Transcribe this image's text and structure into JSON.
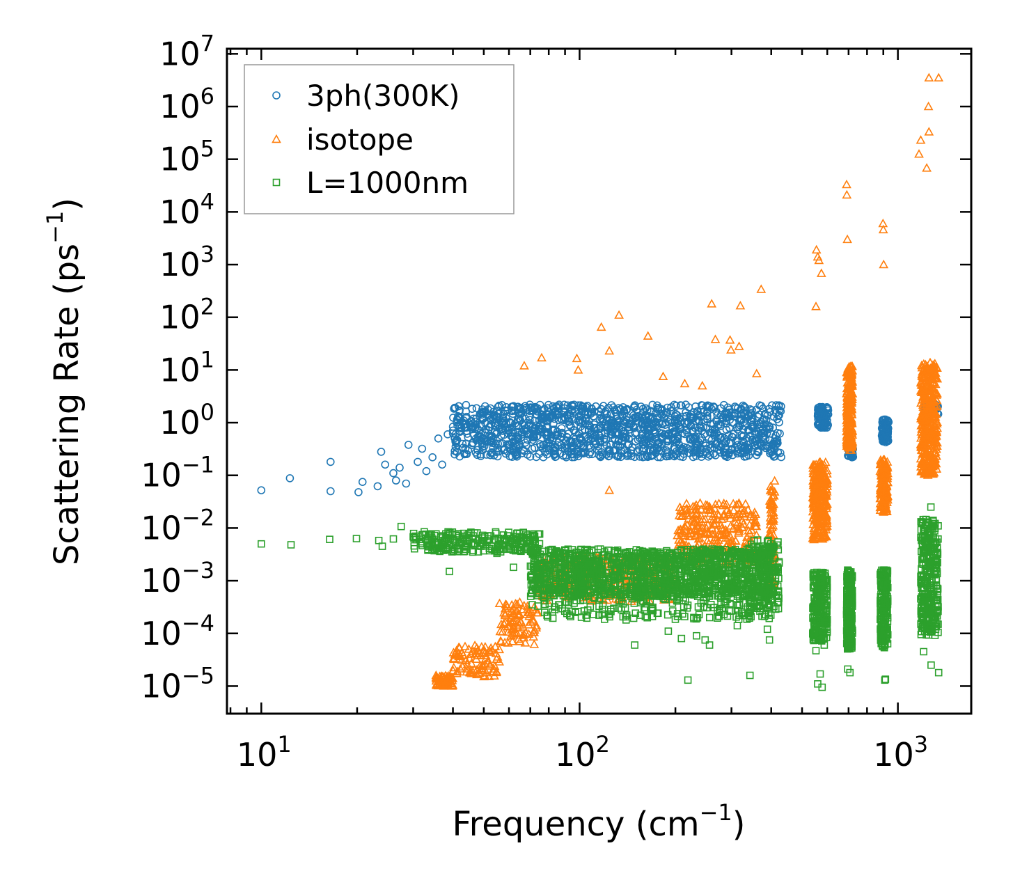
{
  "chart_data": {
    "type": "scatter",
    "xscale": "log",
    "yscale": "log",
    "xlim": [
      7.8,
      1700
    ],
    "ylim": [
      3e-06,
      12500000
    ],
    "xlabel": {
      "base": "Frequency (cm",
      "sup": "−1",
      "tail": ")"
    },
    "ylabel": {
      "base": "Scattering Rate (ps",
      "sup": "−1",
      "tail": ")"
    },
    "xticks": [
      {
        "value": 10,
        "base": "10",
        "exp": "1"
      },
      {
        "value": 100,
        "base": "10",
        "exp": "2"
      },
      {
        "value": 1000,
        "base": "10",
        "exp": "3"
      }
    ],
    "yticks": [
      {
        "value": 1e-05,
        "base": "10",
        "exp": "−5"
      },
      {
        "value": 0.0001,
        "base": "10",
        "exp": "−4"
      },
      {
        "value": 0.001,
        "base": "10",
        "exp": "−3"
      },
      {
        "value": 0.01,
        "base": "10",
        "exp": "−2"
      },
      {
        "value": 0.1,
        "base": "10",
        "exp": "−1"
      },
      {
        "value": 1,
        "base": "10",
        "exp": "0"
      },
      {
        "value": 10,
        "base": "10",
        "exp": "1"
      },
      {
        "value": 100,
        "base": "10",
        "exp": "2"
      },
      {
        "value": 1000,
        "base": "10",
        "exp": "3"
      },
      {
        "value": 10000,
        "base": "10",
        "exp": "4"
      },
      {
        "value": 100000,
        "base": "10",
        "exp": "5"
      },
      {
        "value": 1000000,
        "base": "10",
        "exp": "6"
      },
      {
        "value": 10000000,
        "base": "10",
        "exp": "7"
      }
    ],
    "legend_position": "top-left",
    "series": [
      {
        "name": "3ph(300K)",
        "marker": "circle",
        "color": "#1f77b4",
        "points": [
          [
            10,
            0.052
          ],
          [
            12.3,
            0.088
          ],
          [
            16.5,
            0.18
          ],
          [
            16.5,
            0.05
          ],
          [
            20.2,
            0.048
          ],
          [
            20.8,
            0.075
          ],
          [
            23.2,
            0.062
          ],
          [
            23.8,
            0.28
          ],
          [
            24.5,
            0.16
          ],
          [
            26,
            0.11
          ],
          [
            26.5,
            0.08
          ],
          [
            27.2,
            0.14
          ],
          [
            28.5,
            0.07
          ],
          [
            29,
            0.38
          ],
          [
            31,
            0.18
          ],
          [
            32,
            0.32
          ],
          [
            33,
            0.12
          ],
          [
            34.5,
            0.22
          ],
          [
            36,
            0.5
          ],
          [
            37,
            0.16
          ],
          [
            38.5,
            0.6
          ],
          [
            40.5,
            0.25
          ],
          [
            42,
            0.7
          ],
          [
            44,
            0.4
          ],
          [
            46,
            0.75
          ],
          [
            48,
            0.55
          ],
          [
            54,
            0.65
          ],
          [
            60,
            0.7
          ],
          [
            61,
            0.55
          ],
          [
            68,
            0.78
          ],
          [
            69,
            0.6
          ]
        ],
        "bands": [
          {
            "x0": 40,
            "x1": 430,
            "y0": 0.22,
            "y1": 2.2,
            "count": 1300
          },
          {
            "x0": 560,
            "x1": 605,
            "y0": 0.8,
            "y1": 2.0,
            "count": 90
          },
          {
            "x0": 695,
            "x1": 725,
            "y0": 0.22,
            "y1": 0.38,
            "count": 60
          },
          {
            "x0": 890,
            "x1": 935,
            "y0": 0.42,
            "y1": 1.2,
            "count": 90
          },
          {
            "x0": 1210,
            "x1": 1340,
            "y0": 1.4,
            "y1": 2.3,
            "count": 40
          }
        ]
      },
      {
        "name": "isotope",
        "marker": "triangle",
        "color": "#ff7f0e",
        "points": [
          [
            67,
            12
          ],
          [
            76,
            17
          ],
          [
            98,
            16.5
          ],
          [
            99,
            10
          ],
          [
            117,
            65
          ],
          [
            133,
            110
          ],
          [
            124,
            23
          ],
          [
            164,
            44
          ],
          [
            183,
            7.5
          ],
          [
            214,
            5.5
          ],
          [
            232,
            0.015
          ],
          [
            243,
            5
          ],
          [
            260,
            180
          ],
          [
            267,
            38
          ],
          [
            297,
            37
          ],
          [
            299,
            24
          ],
          [
            320,
            165
          ],
          [
            317,
            28
          ],
          [
            360,
            8.5
          ],
          [
            372,
            340
          ],
          [
            124,
            0.052
          ],
          [
            555,
            1900
          ],
          [
            560,
            1400
          ],
          [
            565,
            1200
          ],
          [
            575,
            680
          ],
          [
            553,
            160
          ],
          [
            690,
            33000
          ],
          [
            691,
            21000
          ],
          [
            694,
            3000
          ],
          [
            898,
            6000
          ],
          [
            900,
            4600
          ],
          [
            902,
            1000
          ],
          [
            1165,
            125000
          ],
          [
            1180,
            230000
          ],
          [
            1232,
            68000
          ],
          [
            1252,
            330000
          ],
          [
            1252,
            3500000
          ],
          [
            1248,
            1000000
          ],
          [
            1343,
            3500000
          ]
        ],
        "bands": [
          {
            "x0": 35,
            "x1": 40,
            "y0": 1e-05,
            "y1": 1.6e-05,
            "count": 60
          },
          {
            "x0": 40,
            "x1": 56,
            "y0": 1.5e-05,
            "y1": 6e-05,
            "count": 90
          },
          {
            "x0": 56,
            "x1": 74,
            "y0": 6e-05,
            "y1": 0.0004,
            "count": 90
          },
          {
            "x0": 74,
            "x1": 200,
            "y0": 0.0004,
            "y1": 0.003,
            "count": 300
          },
          {
            "x0": 200,
            "x1": 360,
            "y0": 0.002,
            "y1": 0.03,
            "count": 260
          },
          {
            "x0": 395,
            "x1": 410,
            "y0": 0.0008,
            "y1": 0.08,
            "count": 80
          },
          {
            "x0": 540,
            "x1": 600,
            "y0": 0.006,
            "y1": 0.18,
            "count": 260
          },
          {
            "x0": 690,
            "x1": 720,
            "y0": 0.3,
            "y1": 12,
            "count": 230
          },
          {
            "x0": 880,
            "x1": 930,
            "y0": 0.02,
            "y1": 0.2,
            "count": 160
          },
          {
            "x0": 1180,
            "x1": 1330,
            "y0": 0.1,
            "y1": 14,
            "count": 380
          }
        ]
      },
      {
        "name": "L=1000nm",
        "marker": "square",
        "color": "#2ca02c",
        "points": [
          [
            10,
            0.005
          ],
          [
            12.4,
            0.0048
          ],
          [
            16.4,
            0.0061
          ],
          [
            19.9,
            0.0063
          ],
          [
            23.4,
            0.0058
          ],
          [
            24,
            0.0045
          ],
          [
            26,
            0.0062
          ],
          [
            27.5,
            0.0107
          ],
          [
            30,
            0.0068
          ],
          [
            35,
            0.0072
          ],
          [
            39,
            0.0015
          ],
          [
            43,
            0.0068
          ],
          [
            47,
            0.0063
          ],
          [
            50,
            0.0058
          ],
          [
            55,
            0.0033
          ],
          [
            62,
            0.0018
          ],
          [
            71,
            0.00035
          ],
          [
            74,
            0.00033
          ],
          [
            79,
            0.00022
          ],
          [
            86,
            0.00035
          ],
          [
            97,
            0.00025
          ],
          [
            108,
            0.00032
          ],
          [
            128,
            0.0003
          ],
          [
            140,
            0.00018
          ],
          [
            149,
            6e-05
          ],
          [
            170,
            0.00027
          ],
          [
            190,
            0.00011
          ],
          [
            209,
            8e-05
          ],
          [
            219,
            1.3e-05
          ],
          [
            233,
            9e-05
          ],
          [
            248,
            7.5e-05
          ],
          [
            256,
            6e-05
          ],
          [
            313,
            0.00014
          ],
          [
            343,
            1.6e-05
          ],
          [
            389,
            0.00012
          ],
          [
            395,
            7.5e-05
          ],
          [
            553,
            4.7e-05
          ],
          [
            560,
            1.1e-05
          ],
          [
            570,
            1.7e-05
          ],
          [
            578,
            9.5e-06
          ],
          [
            587,
            6e-05
          ],
          [
            696,
            2.1e-05
          ],
          [
            707,
            1.8e-05
          ],
          [
            910,
            1.3e-05
          ],
          [
            914,
            1.35e-05
          ],
          [
            1205,
            4.5e-05
          ],
          [
            1272,
            2.5e-05
          ],
          [
            1343,
            1.8e-05
          ],
          [
            1270,
            0.025
          ]
        ],
        "bands": [
          {
            "x0": 30,
            "x1": 75,
            "y0": 0.0035,
            "y1": 0.0085,
            "count": 240
          },
          {
            "x0": 70,
            "x1": 400,
            "y0": 0.0005,
            "y1": 0.004,
            "count": 1400
          },
          {
            "x0": 75,
            "x1": 400,
            "y0": 0.00018,
            "y1": 0.0007,
            "count": 220
          },
          {
            "x0": 340,
            "x1": 425,
            "y0": 0.00025,
            "y1": 0.006,
            "count": 160
          },
          {
            "x0": 540,
            "x1": 600,
            "y0": 7e-05,
            "y1": 0.0015,
            "count": 240
          },
          {
            "x0": 690,
            "x1": 720,
            "y0": 5e-05,
            "y1": 0.0016,
            "count": 220
          },
          {
            "x0": 880,
            "x1": 930,
            "y0": 5e-05,
            "y1": 0.0016,
            "count": 200
          },
          {
            "x0": 1180,
            "x1": 1340,
            "y0": 9e-05,
            "y1": 0.015,
            "count": 320
          }
        ]
      }
    ]
  }
}
